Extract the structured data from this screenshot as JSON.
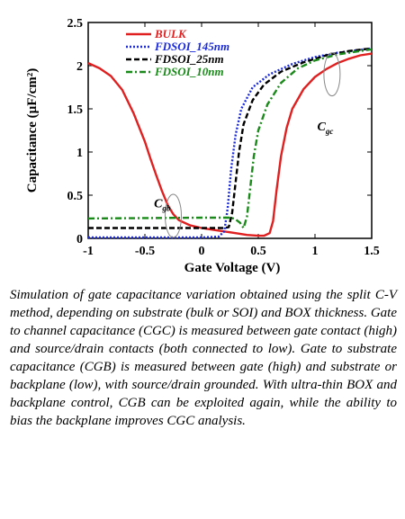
{
  "chart_data": {
    "type": "line",
    "xlabel": "Gate Voltage (V)",
    "ylabel": "Capacitance (µF/cm²)",
    "xlim": [
      -1,
      1.5
    ],
    "ylim": [
      0,
      2.5
    ],
    "x_ticks": [
      "-1",
      "-0.5",
      "0",
      "0.5",
      "1",
      "1.5"
    ],
    "y_ticks": [
      "0",
      "0.5",
      "1",
      "1.5",
      "2",
      "2.5"
    ],
    "legend_position": "top-left",
    "series": [
      {
        "name": "BULK",
        "color": "#e02020",
        "dash": "solid",
        "points": [
          [
            -1.0,
            2.03
          ],
          [
            -0.9,
            1.97
          ],
          [
            -0.8,
            1.88
          ],
          [
            -0.7,
            1.72
          ],
          [
            -0.6,
            1.45
          ],
          [
            -0.5,
            1.12
          ],
          [
            -0.45,
            0.92
          ],
          [
            -0.4,
            0.73
          ],
          [
            -0.35,
            0.55
          ],
          [
            -0.3,
            0.39
          ],
          [
            -0.25,
            0.28
          ],
          [
            -0.2,
            0.21
          ],
          [
            -0.1,
            0.15
          ],
          [
            0.0,
            0.12
          ],
          [
            0.1,
            0.1
          ],
          [
            0.2,
            0.08
          ],
          [
            0.3,
            0.06
          ],
          [
            0.4,
            0.04
          ],
          [
            0.5,
            0.03
          ],
          [
            0.55,
            0.03
          ],
          [
            0.6,
            0.06
          ],
          [
            0.63,
            0.2
          ],
          [
            0.66,
            0.55
          ],
          [
            0.7,
            0.95
          ],
          [
            0.75,
            1.28
          ],
          [
            0.8,
            1.5
          ],
          [
            0.9,
            1.73
          ],
          [
            1.0,
            1.87
          ],
          [
            1.1,
            1.96
          ],
          [
            1.2,
            2.03
          ],
          [
            1.3,
            2.08
          ],
          [
            1.4,
            2.12
          ],
          [
            1.5,
            2.14
          ]
        ]
      },
      {
        "name": "FDSOI_145nm",
        "color": "#1a2adb",
        "dash": "dotted",
        "points": [
          [
            -1.0,
            0.01
          ],
          [
            0.0,
            0.01
          ],
          [
            0.15,
            0.02
          ],
          [
            0.2,
            0.08
          ],
          [
            0.23,
            0.35
          ],
          [
            0.26,
            0.8
          ],
          [
            0.3,
            1.2
          ],
          [
            0.35,
            1.5
          ],
          [
            0.45,
            1.75
          ],
          [
            0.6,
            1.9
          ],
          [
            0.8,
            2.02
          ],
          [
            1.0,
            2.1
          ],
          [
            1.2,
            2.15
          ],
          [
            1.5,
            2.2
          ]
        ]
      },
      {
        "name": "FDSOI_25nm",
        "color": "#000000",
        "dash": "dashed",
        "points": [
          [
            -1.0,
            0.12
          ],
          [
            0.0,
            0.12
          ],
          [
            0.2,
            0.12
          ],
          [
            0.24,
            0.13
          ],
          [
            0.27,
            0.3
          ],
          [
            0.3,
            0.65
          ],
          [
            0.33,
            1.0
          ],
          [
            0.37,
            1.32
          ],
          [
            0.45,
            1.6
          ],
          [
            0.55,
            1.78
          ],
          [
            0.7,
            1.93
          ],
          [
            0.9,
            2.04
          ],
          [
            1.1,
            2.12
          ],
          [
            1.3,
            2.17
          ],
          [
            1.5,
            2.2
          ]
        ]
      },
      {
        "name": "FDSOI_10nm",
        "color": "#1a8a1a",
        "dash": "dashdot",
        "points": [
          [
            -1.0,
            0.23
          ],
          [
            0.0,
            0.24
          ],
          [
            0.2,
            0.24
          ],
          [
            0.26,
            0.24
          ],
          [
            0.3,
            0.22
          ],
          [
            0.34,
            0.18
          ],
          [
            0.37,
            0.12
          ],
          [
            0.4,
            0.25
          ],
          [
            0.43,
            0.6
          ],
          [
            0.46,
            0.95
          ],
          [
            0.5,
            1.25
          ],
          [
            0.58,
            1.55
          ],
          [
            0.7,
            1.8
          ],
          [
            0.85,
            1.97
          ],
          [
            1.0,
            2.06
          ],
          [
            1.2,
            2.13
          ],
          [
            1.5,
            2.19
          ]
        ]
      }
    ],
    "annotations": [
      {
        "label": "C",
        "subscript": "gb",
        "x": -0.42,
        "y": 0.36
      },
      {
        "label": "C",
        "subscript": "gc",
        "x": 1.02,
        "y": 1.25
      }
    ],
    "ellipses": [
      {
        "cx": -0.25,
        "cy": 0.26
      },
      {
        "cx": 1.15,
        "cy": 1.9
      }
    ]
  },
  "caption": "Simulation of gate capacitance variation obtained using the split C-V method, depending on substrate (bulk or SOI) and BOX thickness. Gate to channel capacitance (CGC) is measured between gate contact (high) and source/drain contacts (both connected to low). Gate to substrate capacitance (CGB) is measured between gate (high) and substrate or backplane (low), with source/drain grounded. With ultra-thin BOX and backplane control, CGB can be exploited again, while the ability to bias the backplane improves CGC analysis."
}
